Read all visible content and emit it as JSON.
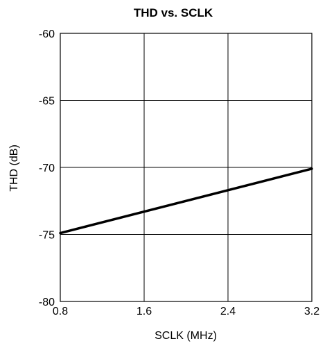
{
  "chart_data": {
    "type": "line",
    "title": "THD vs. SCLK",
    "xlabel": "SCLK (MHz)",
    "ylabel": "THD (dB)",
    "xlim": [
      0.8,
      3.2
    ],
    "ylim": [
      -80,
      -60
    ],
    "xticks": [
      0.8,
      1.6,
      2.4,
      3.2
    ],
    "xtick_labels": [
      "0.8",
      "1.6",
      "2.4",
      "3.2"
    ],
    "yticks": [
      -60,
      -65,
      -70,
      -75,
      -80
    ],
    "ytick_labels": [
      "-60",
      "-65",
      "-70",
      "-75",
      "-80"
    ],
    "grid": true,
    "series": [
      {
        "x": [
          0.8,
          3.2
        ],
        "y": [
          -74.9,
          -70.1
        ],
        "color": "#000000"
      }
    ]
  }
}
